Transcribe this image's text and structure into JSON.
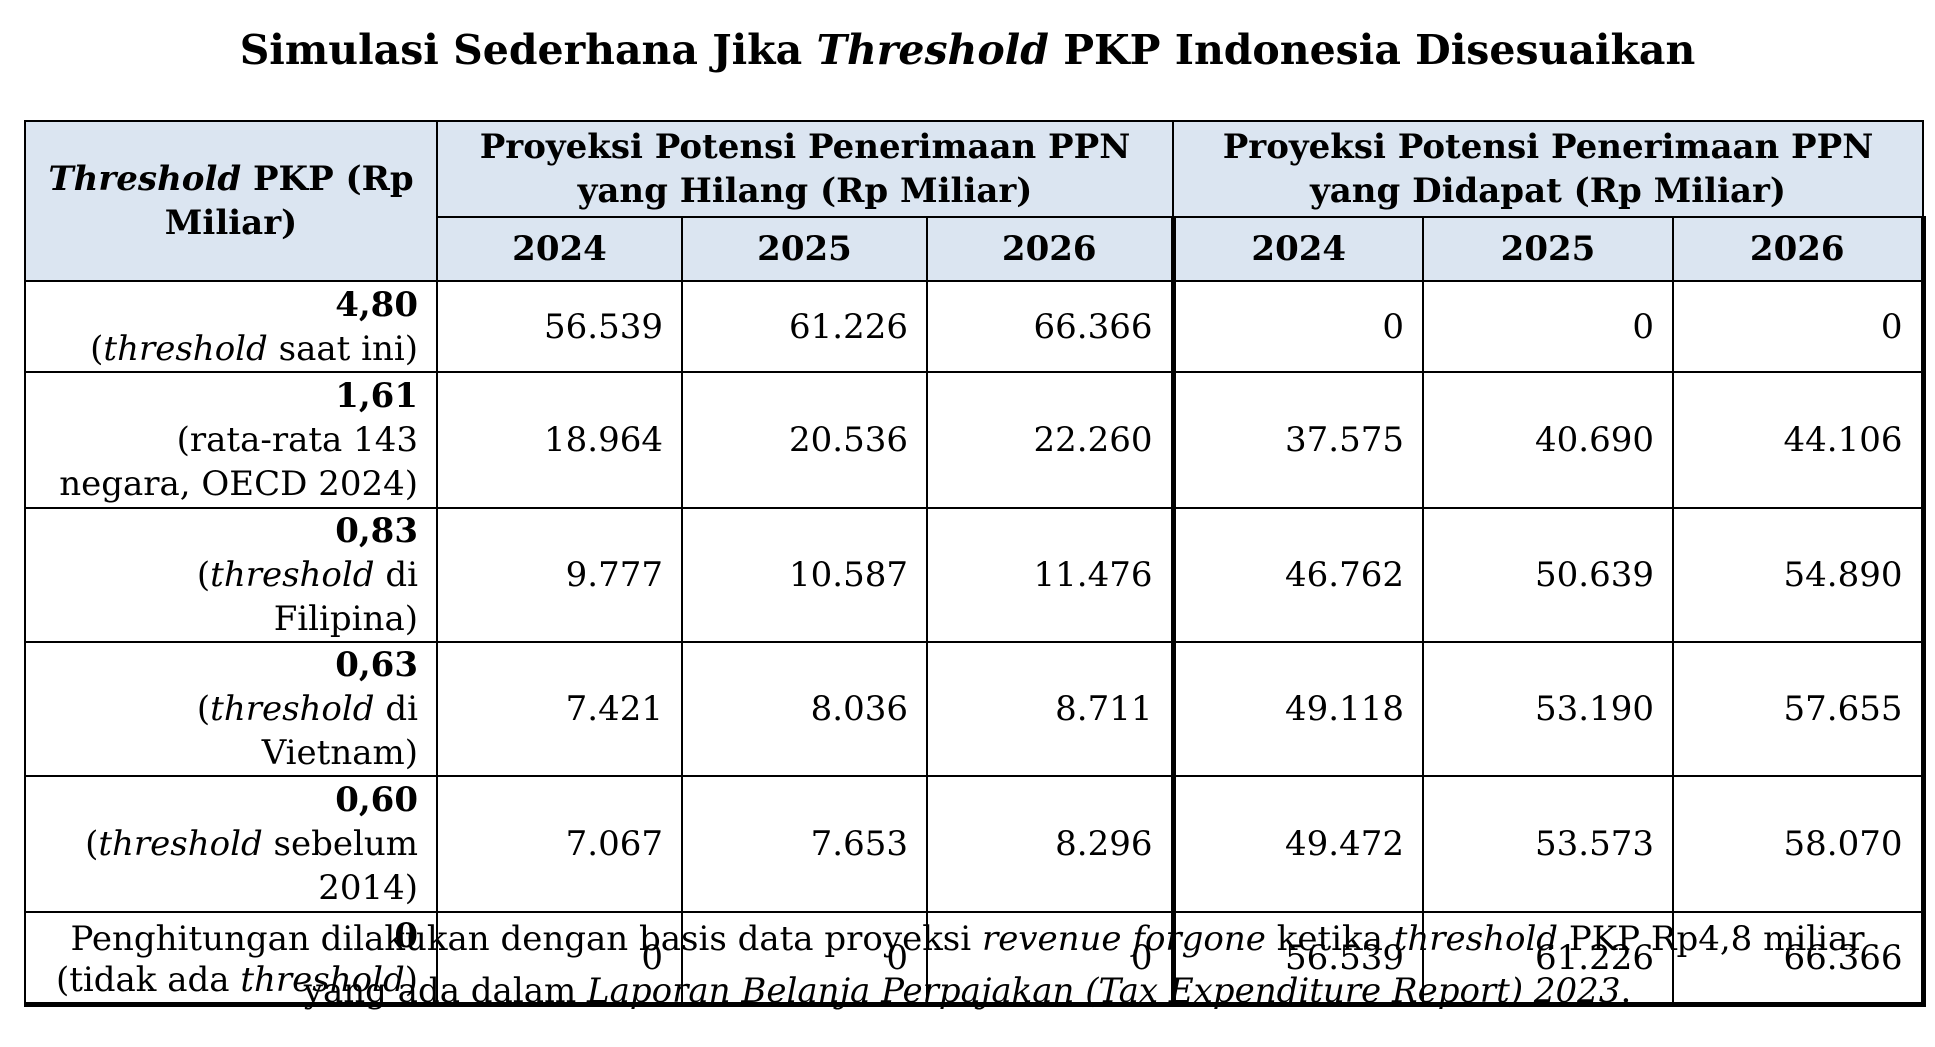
{
  "title": {
    "pre": "Simulasi Sederhana Jika ",
    "em": "Threshold",
    "post": " PKP Indonesia Disesuaikan"
  },
  "table": {
    "row_header": {
      "em": "Threshold",
      "post": " PKP (Rp Miliar)"
    },
    "group_lost": "Proyeksi Potensi Penerimaan PPN yang Hilang (Rp Miliar)",
    "group_gained": "Proyeksi Potensi Penerimaan PPN yang Didapat (Rp Miliar)",
    "years": [
      "2024",
      "2025",
      "2026"
    ],
    "rows": [
      {
        "value": "4,80",
        "desc_pre": "(",
        "desc_em": "threshold",
        "desc_post": " saat ini)",
        "lost": [
          "56.539",
          "61.226",
          "66.366"
        ],
        "gained": [
          "0",
          "0",
          "0"
        ]
      },
      {
        "value": "1,61",
        "desc_pre": "(rata-rata 143 negara, OECD 2024)",
        "desc_em": "",
        "desc_post": "",
        "lost": [
          "18.964",
          "20.536",
          "22.260"
        ],
        "gained": [
          "37.575",
          "40.690",
          "44.106"
        ]
      },
      {
        "value": "0,83",
        "desc_pre": "(",
        "desc_em": "threshold",
        "desc_post": " di Filipina)",
        "lost": [
          "9.777",
          "10.587",
          "11.476"
        ],
        "gained": [
          "46.762",
          "50.639",
          "54.890"
        ]
      },
      {
        "value": "0,63",
        "desc_pre": "(",
        "desc_em": "threshold",
        "desc_post": " di Vietnam)",
        "lost": [
          "7.421",
          "8.036",
          "8.711"
        ],
        "gained": [
          "49.118",
          "53.190",
          "57.655"
        ]
      },
      {
        "value": "0,60",
        "desc_pre": "(",
        "desc_em": "threshold",
        "desc_post": " sebelum 2014)",
        "lost": [
          "7.067",
          "7.653",
          "8.296"
        ],
        "gained": [
          "49.472",
          "53.573",
          "58.070"
        ]
      },
      {
        "value": "0",
        "desc_pre": "(tidak ada ",
        "desc_em": "threshold",
        "desc_post": ")",
        "lost": [
          "0",
          "0",
          "0"
        ],
        "gained": [
          "56.539",
          "61.226",
          "66.366"
        ]
      }
    ]
  },
  "footnote": {
    "line1_pre": "Penghitungan dilakukan dengan basis data proyeksi ",
    "line1_em1": "revenue forgone",
    "line1_mid": " ketika ",
    "line1_em2": "threshold",
    "line1_post": " PKP Rp4,8 miliar",
    "line2_pre": "yang ada dalam ",
    "line2_em": "Laporan Belanja Perpajakan (Tax Expenditure Report) 2023",
    "line2_post": "."
  },
  "colors": {
    "header_bg": "#dbe5f1",
    "border": "#000000",
    "text": "#000000"
  }
}
